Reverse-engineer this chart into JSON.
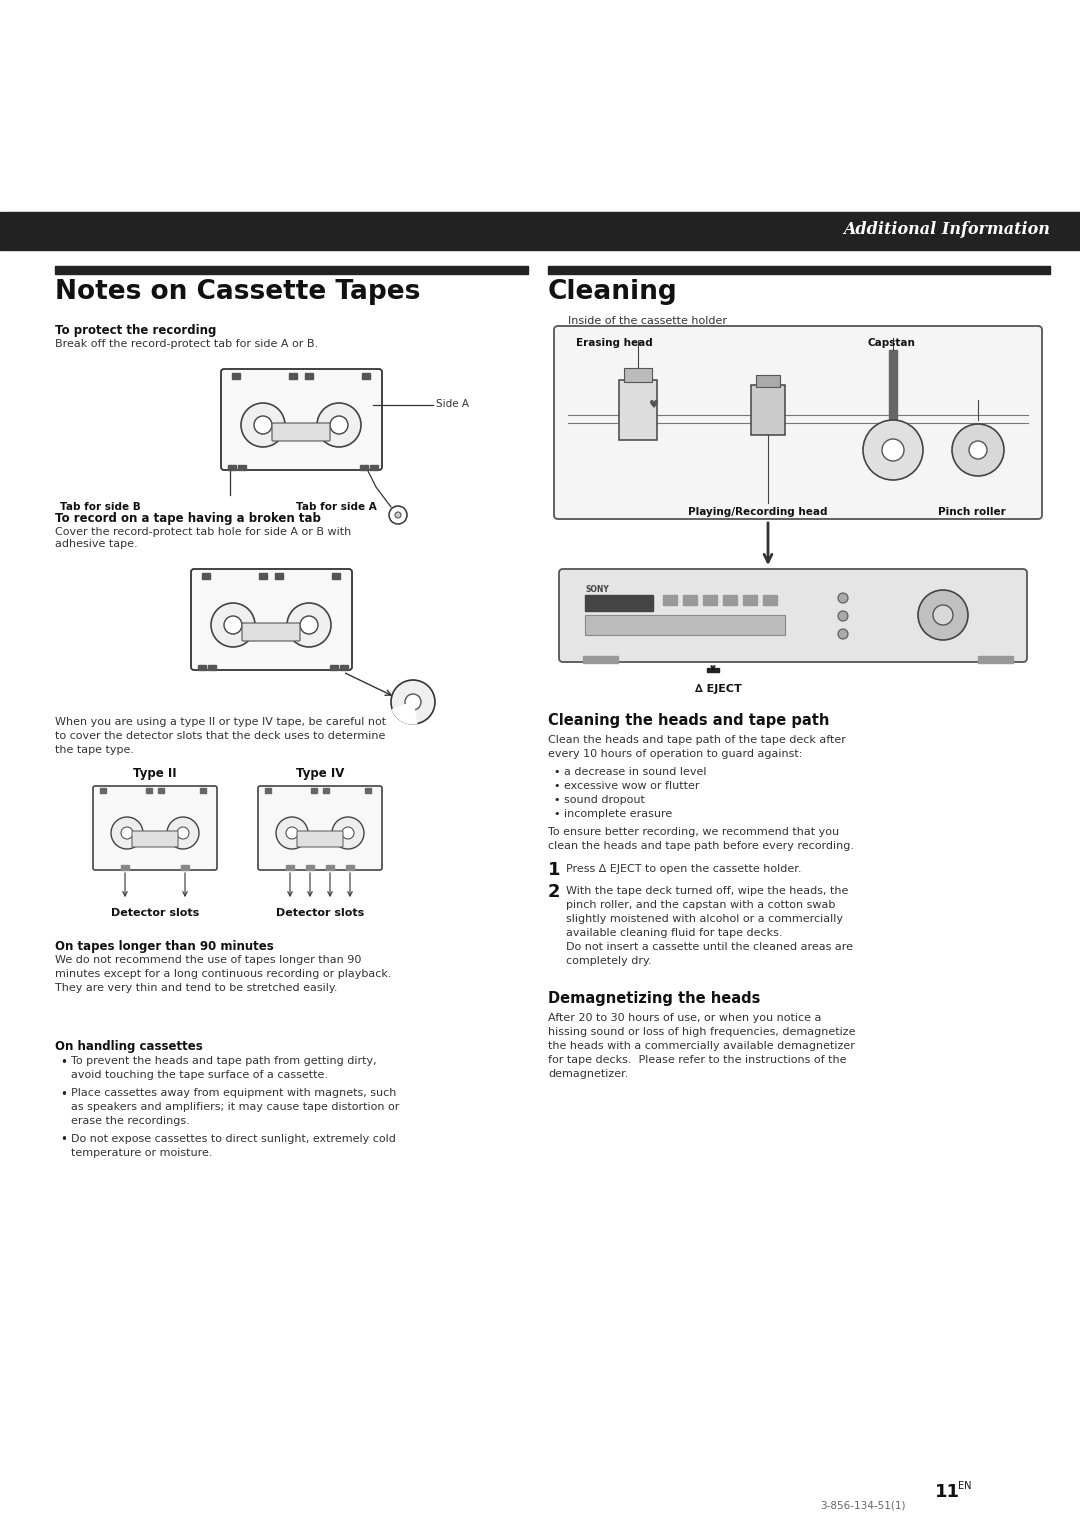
{
  "page_bg": "#ffffff",
  "header_bar_color": "#222222",
  "header_text": "Additional Information",
  "header_text_color": "#ffffff",
  "section_bar_color": "#222222",
  "left_title": "Notes on Cassette Tapes",
  "right_title": "Cleaning",
  "sub1_title": "To protect the recording",
  "sub1_body": "Break off the record-protect tab for side A or B.",
  "sub2_title": "To record on a tape having a broken tab",
  "sub2_body": "Cover the record-protect tab hole for side A or B with\nadhesive tape.",
  "sub3_note": "When you are using a type II or type IV tape, be careful not\nto cover the detector slots that the deck uses to determine\nthe tape type.",
  "sub4_title": "On tapes longer than 90 minutes",
  "sub4_body": "We do not recommend the use of tapes longer than 90\nminutes except for a long continuous recording or playback.\nThey are very thin and tend to be stretched easily.",
  "sub5_title": "On handling cassettes",
  "sub5_bullets": [
    "To prevent the heads and tape path from getting dirty,\navoid touching the tape surface of a cassette.",
    "Place cassettes away from equipment with magnets, such\nas speakers and amplifiers; it may cause tape distortion or\nerase the recordings.",
    "Do not expose cassettes to direct sunlight, extremely cold\ntemperature or moisture."
  ],
  "cleaning_inside_label": "Inside of the cassette holder",
  "cleaning_labels": [
    "Erasing head",
    "Capstan",
    "Playing/Recording head",
    "Pinch roller"
  ],
  "eject_label": "∆ EJECT",
  "cleaning_head_title": "Cleaning the heads and tape path",
  "cleaning_head_body": "Clean the heads and tape path of the tape deck after\nevery 10 hours of operation to guard against:",
  "cleaning_bullets": [
    "a decrease in sound level",
    "excessive wow or flutter",
    "sound dropout",
    "incomplete erasure"
  ],
  "cleaning_tail": "To ensure better recording, we recommend that you\nclean the heads and tape path before every recording.",
  "step1_num": "1",
  "step1_text": "Press ∆ EJECT to open the cassette holder.",
  "step2_num": "2",
  "step2_text": "With the tape deck turned off, wipe the heads, the\npinch roller, and the capstan with a cotton swab\nslightly moistened with alcohol or a commercially\navailable cleaning fluid for tape decks.\nDo not insert a cassette until the cleaned areas are\ncompletely dry.",
  "demag_title": "Demagnetizing the heads",
  "demag_body": "After 20 to 30 hours of use, or when you notice a\nhissing sound or loss of high frequencies, demagnetize\nthe heads with a commercially available demagnetizer\nfor tape decks.  Please refer to the instructions of the\ndemagnetizer.",
  "page_num": "11",
  "page_num_sup": "EN",
  "catalog_num": "3-856-134-51(1)"
}
